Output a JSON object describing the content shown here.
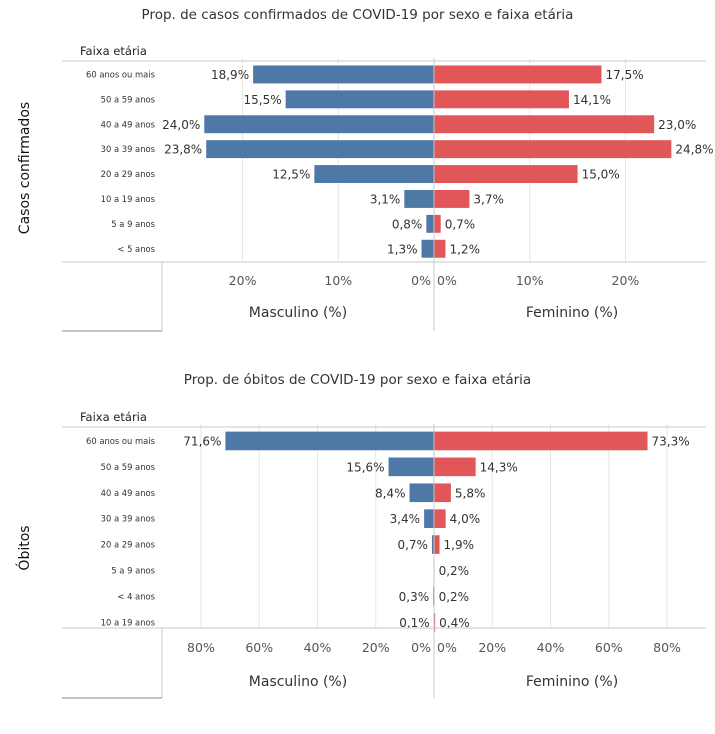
{
  "colors": {
    "male": "#4e79a7",
    "female": "#e15759",
    "grid": "#e6e6e6",
    "line": "#c8c8c8"
  },
  "chart_data": [
    {
      "type": "bar",
      "title": "Prop. de casos confirmados de COVID-19 por sexo e faixa etária",
      "row_label": "Casos confirmados",
      "category_header": "Faixa etária",
      "categories": [
        "60 anos ou mais",
        "50 a 59 anos",
        "40 a 49 anos",
        "30 a 39 anos",
        "20 a 29 anos",
        "10 a 19 anos",
        "5 a 9 anos",
        "< 5 anos"
      ],
      "series": [
        {
          "name": "Masculino (%)",
          "values": [
            18.9,
            15.5,
            24.0,
            23.8,
            12.5,
            3.1,
            0.8,
            1.3
          ],
          "labels": [
            "18,9%",
            "15,5%",
            "24,0%",
            "23,8%",
            "12,5%",
            "3,1%",
            "0,8%",
            "1,3%"
          ]
        },
        {
          "name": "Feminino (%)",
          "values": [
            17.5,
            14.1,
            23.0,
            24.8,
            15.0,
            3.7,
            0.7,
            1.2
          ],
          "labels": [
            "17,5%",
            "14,1%",
            "23,0%",
            "24,8%",
            "15,0%",
            "3,7%",
            "0,7%",
            "1,2%"
          ]
        }
      ],
      "xlim": [
        0,
        28
      ],
      "ticks": [
        0,
        10,
        20
      ],
      "tick_labels": [
        "0%",
        "10%",
        "20%"
      ]
    },
    {
      "type": "bar",
      "title": "Prop. de óbitos de COVID-19 por sexo e faixa etária",
      "row_label": "Óbitos",
      "category_header": "Faixa etária",
      "categories": [
        "60 anos ou mais",
        "50 a 59 anos",
        "40 a 49 anos",
        "30 a 39 anos",
        "20 a 29 anos",
        "5 a 9 anos",
        "< 4 anos",
        "10 a 19 anos"
      ],
      "series": [
        {
          "name": "Masculino (%)",
          "values": [
            71.6,
            15.6,
            8.4,
            3.4,
            0.7,
            0,
            0.3,
            0.1
          ],
          "labels": [
            "71,6%",
            "15,6%",
            "8,4%",
            "3,4%",
            "0,7%",
            "",
            "0,3%",
            "0,1%"
          ]
        },
        {
          "name": "Feminino (%)",
          "values": [
            73.3,
            14.3,
            5.8,
            4.0,
            1.9,
            0.2,
            0.2,
            0.4
          ],
          "labels": [
            "73,3%",
            "14,3%",
            "5,8%",
            "4,0%",
            "1,9%",
            "0,2%",
            "0,2%",
            "0,4%"
          ]
        }
      ],
      "xlim": [
        0,
        92
      ],
      "ticks": [
        0,
        20,
        40,
        60,
        80
      ],
      "tick_labels": [
        "0%",
        "20%",
        "40%",
        "60%",
        "80%"
      ]
    }
  ]
}
